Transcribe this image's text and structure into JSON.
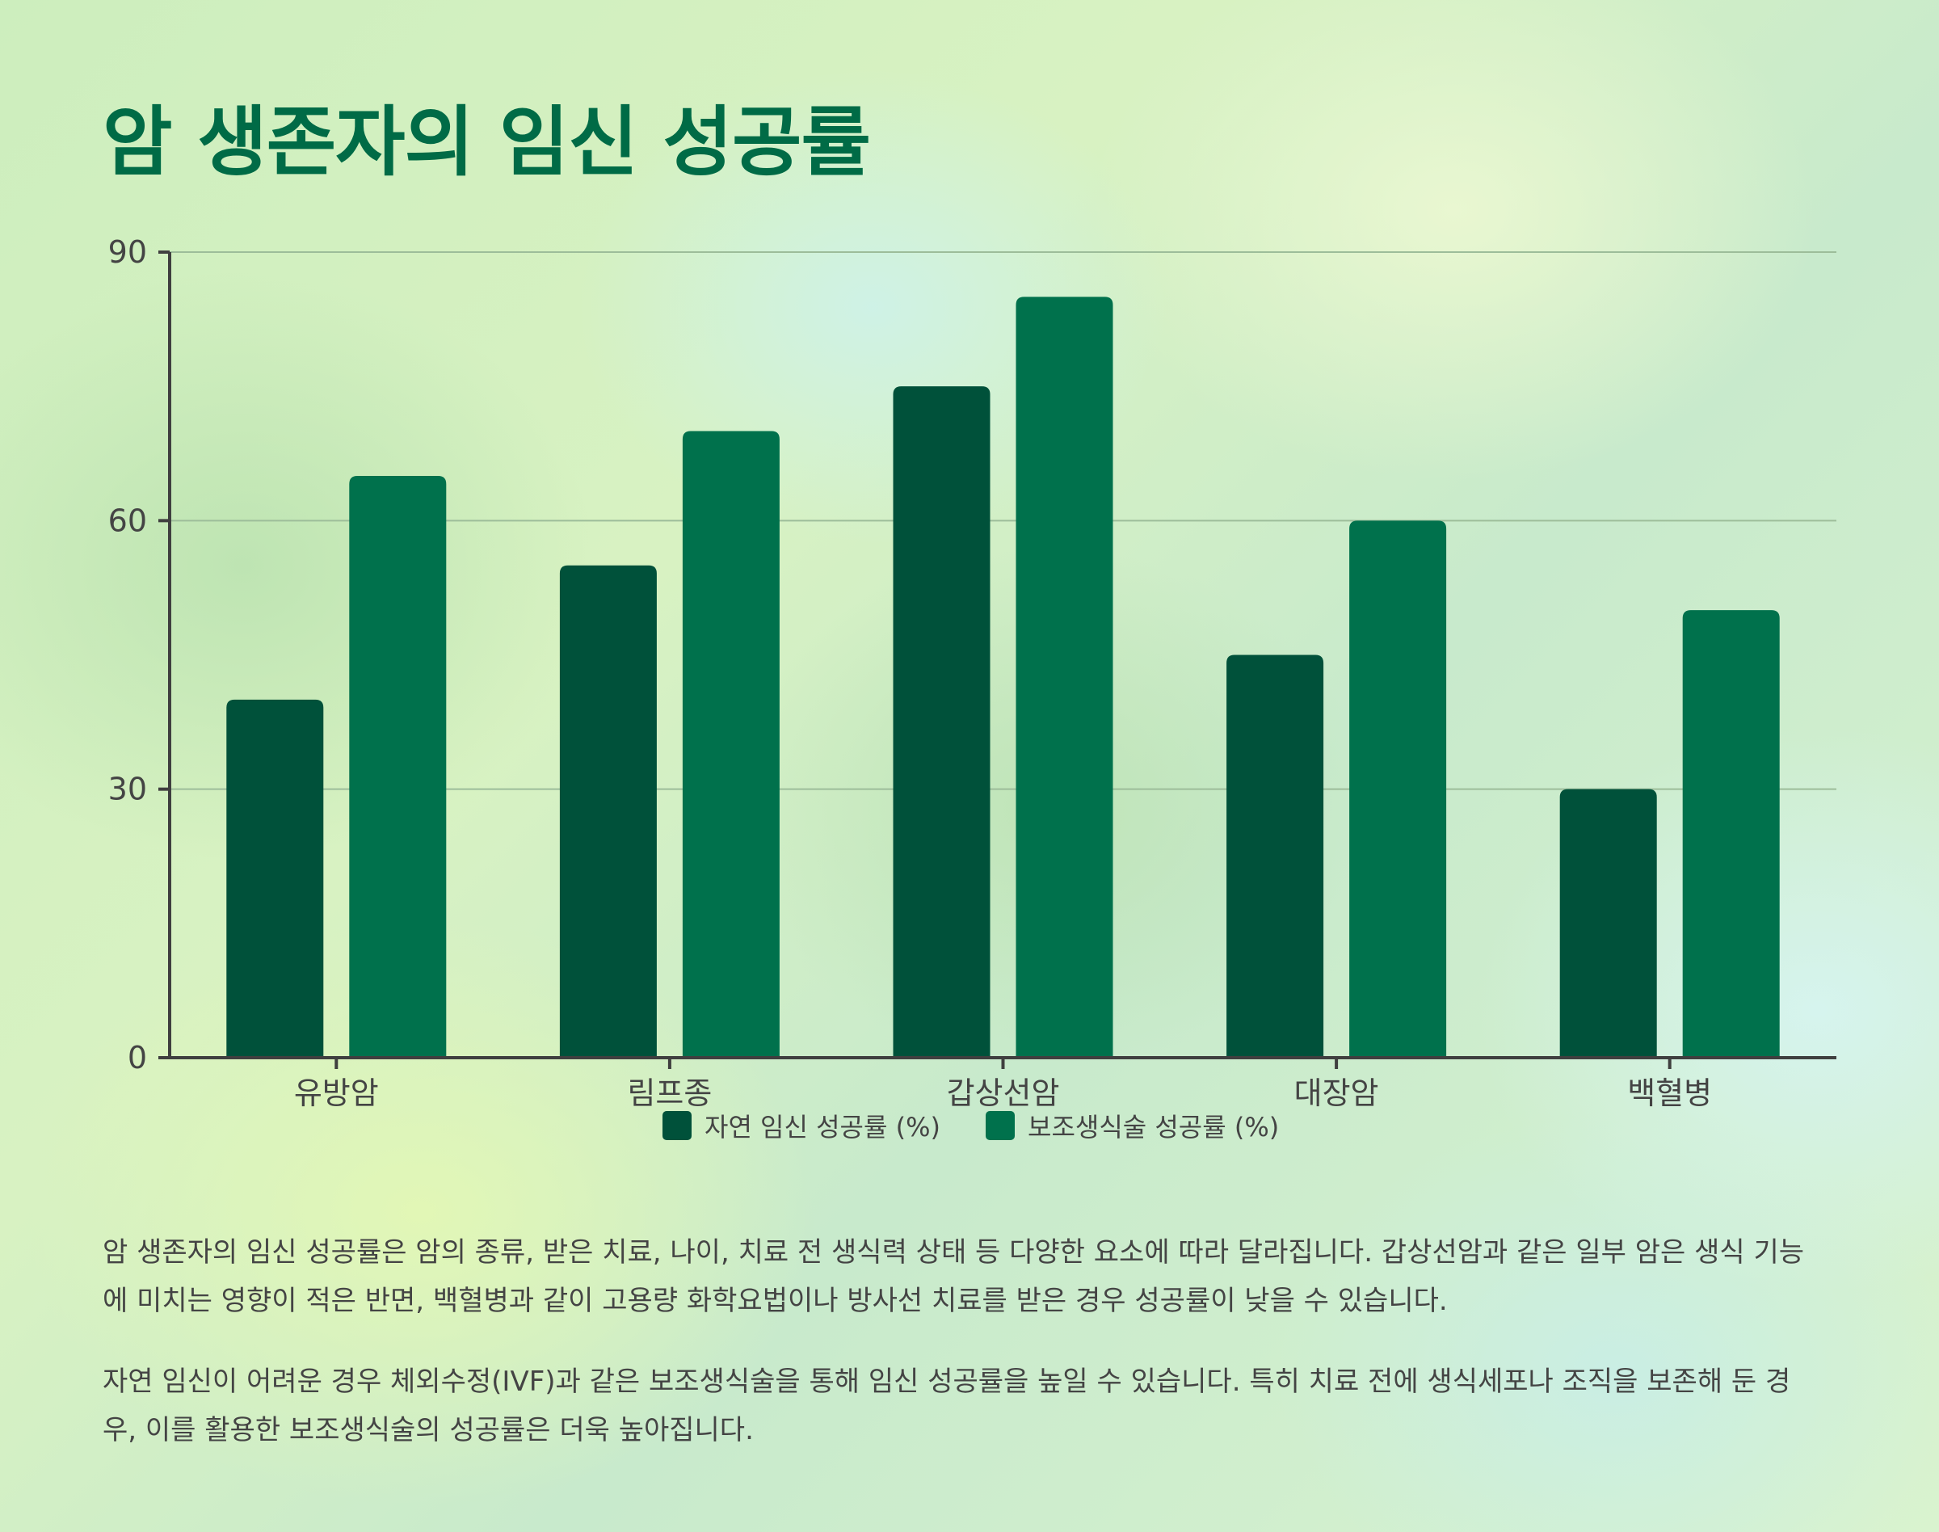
{
  "title": "암 생존자의 임신 성공률",
  "description": [
    "암 생존자의 임신 성공률은 암의 종류, 받은 치료, 나이, 치료 전 생식력 상태 등 다양한 요소에 따라 달라집니다. 갑상선암과 같은 일부 암은 생식 기능에 미치는 영향이 적은 반면, 백혈병과 같이 고용량 화학요법이나 방사선 치료를 받은 경우 성공률이 낮을 수 있습니다.",
    "자연 임신이 어려운 경우 체외수정(IVF)과 같은 보조생식술을 통해 임신 성공률을 높일 수 있습니다. 특히 치료 전에 생식세포나 조직을 보존해 둔 경우, 이를 활용한 보조생식술의 성공률은 더욱 높아집니다."
  ],
  "chart_data": {
    "type": "bar",
    "title": "암 생존자의 임신 성공률",
    "xlabel": "",
    "ylabel": "",
    "categories": [
      "유방암",
      "림프종",
      "갑상선암",
      "대장암",
      "백혈병"
    ],
    "series": [
      {
        "name": "자연 임신 성공률 (%)",
        "values": [
          40,
          55,
          75,
          45,
          30
        ],
        "color": "#00513a"
      },
      {
        "name": "보조생식술 성공률 (%)",
        "values": [
          65,
          70,
          85,
          60,
          50
        ],
        "color": "#00714c"
      }
    ],
    "ylim": [
      0,
      90
    ],
    "yticks": [
      0,
      30,
      60,
      90
    ],
    "grid": true,
    "legend": "bottom-center"
  }
}
